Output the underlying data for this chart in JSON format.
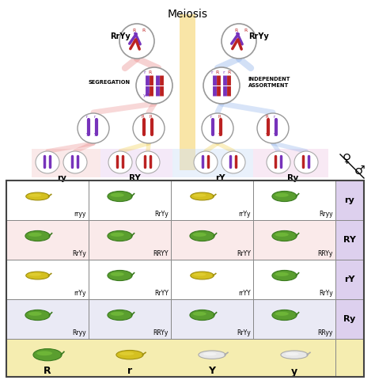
{
  "title": "Meiosis",
  "background_color": "#ffffff",
  "fig_width": 4.74,
  "fig_height": 4.8,
  "gamete_row_labels": [
    "ry",
    "RY",
    "rY",
    "Ry"
  ],
  "gamete_col_labels": [
    "ry",
    "RY",
    "rY",
    "Ry"
  ],
  "punnett_labels": [
    [
      "rryy",
      "RrYy",
      "rrYy",
      "Rryy"
    ],
    [
      "RrYy",
      "RRYY",
      "RrYY",
      "RRYy"
    ],
    [
      "rrYy",
      "RrYY",
      "rrYY",
      "RrYy"
    ],
    [
      "Rryy",
      "RRYy",
      "RrYy",
      "RRyy"
    ]
  ],
  "legend_labels": [
    "R",
    "r",
    "Y",
    "y"
  ],
  "parent_labels": [
    "RrYy",
    "RrYy"
  ],
  "segregation_label": "SEGREGATION",
  "assortment_label": "INDEPENDENT\nASSORTMENT",
  "female_symbol": "♀",
  "male_symbol": "♂",
  "row_label_bg": "#ddd0ee",
  "legend_bg": "#f5edb0",
  "row_bg_colors": [
    "#ffffff",
    "#faeaea",
    "#ffffff",
    "#eaeaf5"
  ],
  "arrow_yellow": "#f0c830",
  "arrow_red": "#e88080",
  "arrow_blue": "#80a8e8",
  "purple": "#7733bb",
  "dark_red": "#bb2222",
  "band_cols": [
    "#f5d0d0",
    "#e8d0f0",
    "#d0e0f8",
    "#f0d0e8"
  ]
}
